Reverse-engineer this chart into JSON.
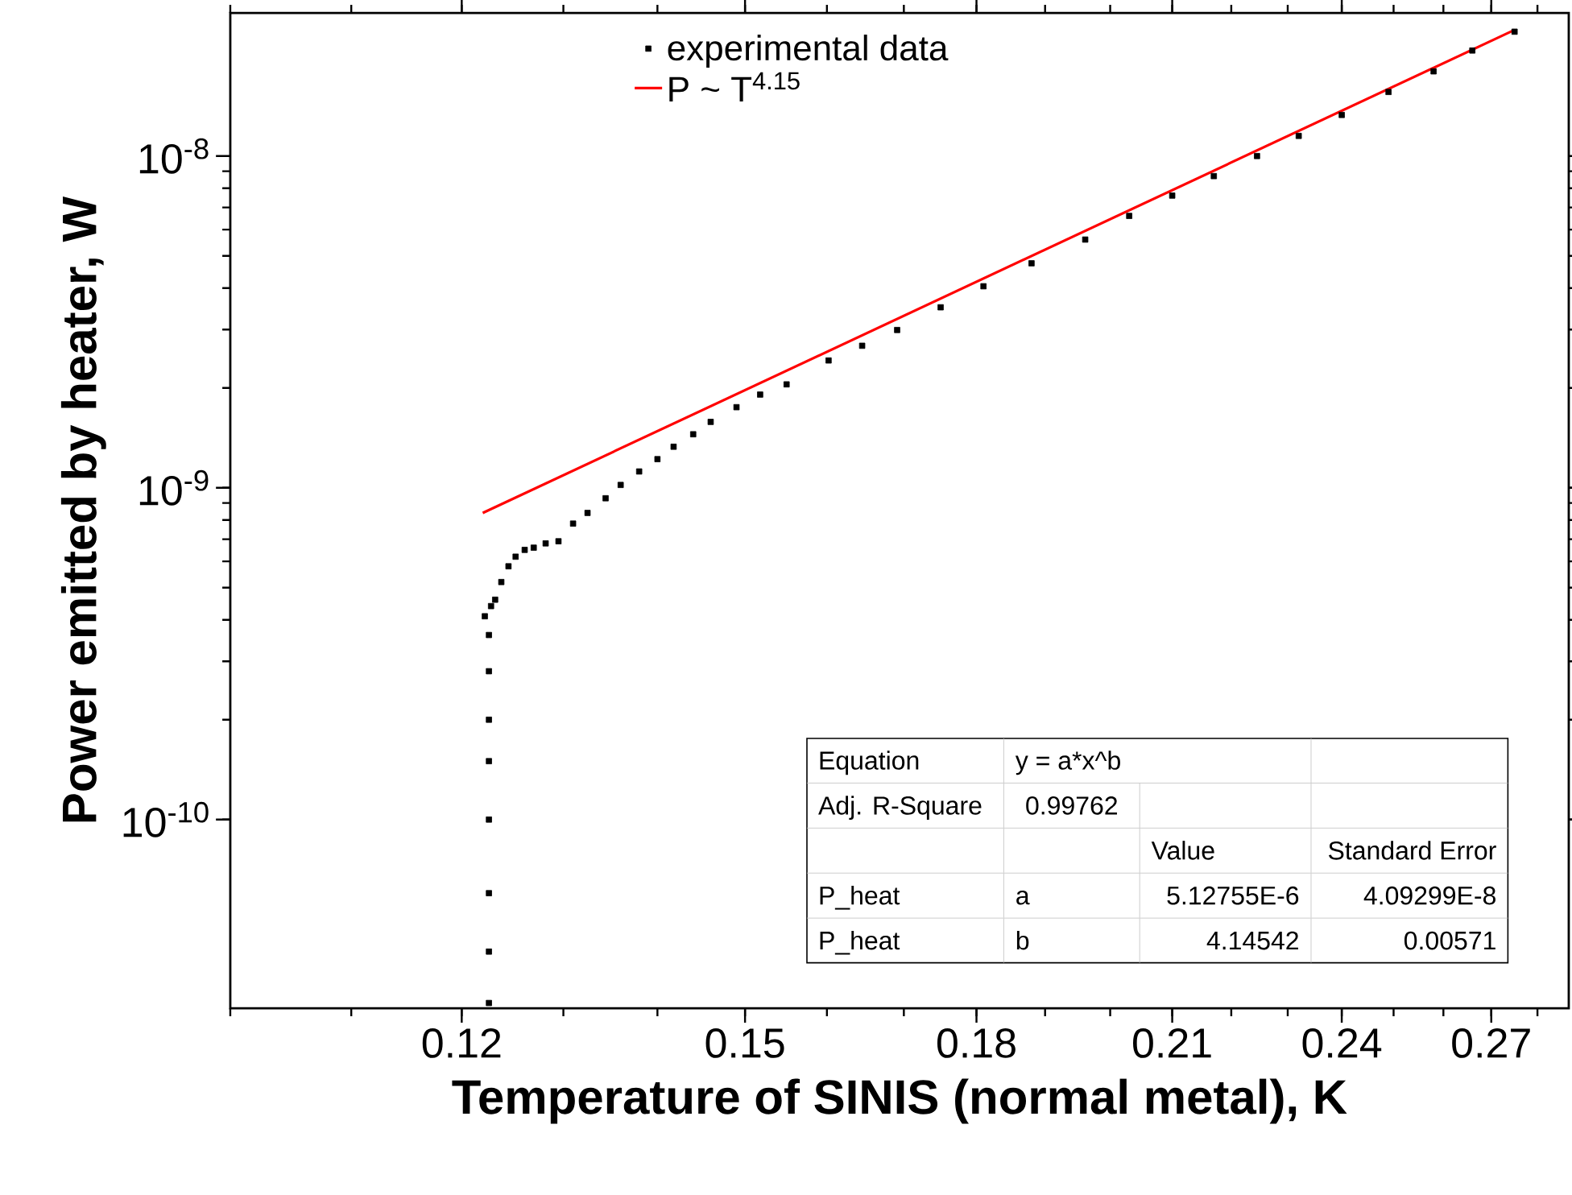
{
  "chart_data": {
    "type": "scatter",
    "xlabel": "Temperature of SINIS (normal metal), K",
    "ylabel": "Power emitted by heater, W",
    "log": "xy",
    "grid": false,
    "legend": "top",
    "marker": "square",
    "xlim": [
      0.1,
      0.287
    ],
    "ylim": [
      2.7e-11,
      2.7e-08
    ],
    "xticks": [
      0.12,
      0.15,
      0.18,
      0.21,
      0.24,
      0.27
    ],
    "yticks": [
      {
        "value": 1e-10,
        "label": "10$^{-10}$"
      },
      {
        "value": 1e-09,
        "label": "10$^{-9}$"
      },
      {
        "value": 1e-08,
        "label": "10$^{-8}$"
      }
    ],
    "series": [
      {
        "name": "experimental data",
        "color": "#000000",
        "x": [
          0.1226,
          0.1226,
          0.1226,
          0.1226,
          0.1226,
          0.1226,
          0.1226,
          0.1226,
          0.1222,
          0.1228,
          0.1232,
          0.1238,
          0.1245,
          0.1252,
          0.1261,
          0.127,
          0.1282,
          0.1295,
          0.131,
          0.1325,
          0.1344,
          0.136,
          0.138,
          0.14,
          0.1418,
          0.144,
          0.146,
          0.149,
          0.1518,
          0.155,
          0.1602,
          0.1645,
          0.1691,
          0.175,
          0.181,
          0.188,
          0.1961,
          0.203,
          0.21,
          0.217,
          0.2245,
          0.232,
          0.24,
          0.249,
          0.258,
          0.266,
          0.275
        ],
        "values": [
          2.8e-11,
          4e-11,
          6e-11,
          1e-10,
          1.5e-10,
          2e-10,
          2.8e-10,
          3.6e-10,
          4.1e-10,
          4.4e-10,
          4.6e-10,
          5.2e-10,
          5.8e-10,
          6.2e-10,
          6.5e-10,
          6.6e-10,
          6.8e-10,
          6.9e-10,
          7.8e-10,
          8.4e-10,
          9.3e-10,
          1.02e-09,
          1.12e-09,
          1.22e-09,
          1.33e-09,
          1.45e-09,
          1.58e-09,
          1.75e-09,
          1.91e-09,
          2.05e-09,
          2.42e-09,
          2.68e-09,
          2.99e-09,
          3.5e-09,
          4.05e-09,
          4.75e-09,
          5.6e-09,
          6.6e-09,
          7.6e-09,
          8.7e-09,
          1e-08,
          1.15e-08,
          1.33e-08,
          1.56e-08,
          1.8e-08,
          2.08e-08,
          2.37e-08
        ]
      },
      {
        "name": "P ~ T$^{4.15}$",
        "color": "#ff0000",
        "type": "line",
        "marker": "none",
        "x": [
          0.122,
          0.275
        ],
        "values": [
          8.4e-10,
          2.4e-08
        ]
      }
    ],
    "annotations": [
      "Equation",
      "y = a*x^b",
      "Adj. R-Square",
      "0.99762",
      "Value",
      "Standard Error",
      "P_heat",
      "a",
      "5.12755E-6",
      "4.09299E-8",
      "P_heat",
      "b",
      "4.14542",
      "0.00571"
    ]
  }
}
